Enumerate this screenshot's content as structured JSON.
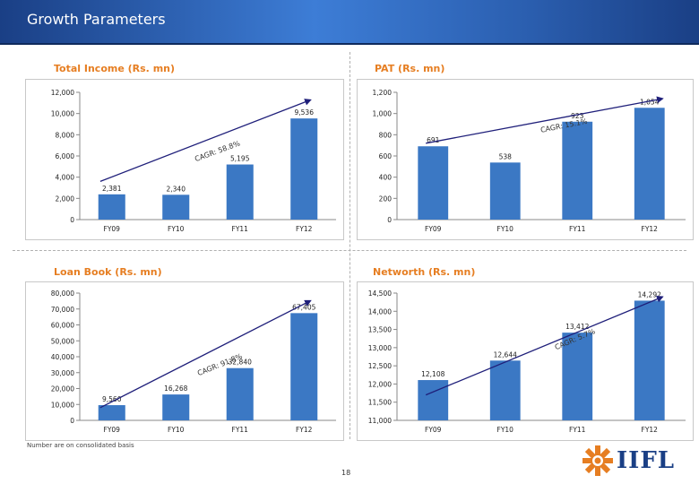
{
  "header": {
    "title": "Growth Parameters"
  },
  "footnote": "Number are on consolidated basis",
  "page_number": "18",
  "logo": {
    "text": "IIFL",
    "colors": {
      "star": "#e67e22",
      "text": "#1a3f85"
    }
  },
  "colors": {
    "bar": "#3b78c4",
    "label": "#e67e22",
    "arrow": "#1f1f7a"
  },
  "chart_data": [
    {
      "type": "bar",
      "title": "Total Income (Rs. mn)",
      "categories": [
        "FY09",
        "FY10",
        "FY11",
        "FY12"
      ],
      "values": [
        2381,
        2340,
        5195,
        9536
      ],
      "value_labels": [
        "2,381",
        "2,340",
        "5,195",
        "9,536"
      ],
      "ylim": [
        0,
        12000
      ],
      "yticks": [
        0,
        2000,
        4000,
        6000,
        8000,
        10000,
        12000
      ],
      "ytick_labels": [
        "0",
        "2,000",
        "4,000",
        "6,000",
        "8,000",
        "10,000",
        "12,000"
      ],
      "annotation": "CAGR: 58.8%"
    },
    {
      "type": "bar",
      "title": "PAT (Rs. mn)",
      "categories": [
        "FY09",
        "FY10",
        "FY11",
        "FY12"
      ],
      "values": [
        691,
        538,
        923,
        1054
      ],
      "value_labels": [
        "691",
        "538",
        "923",
        "1,054"
      ],
      "ylim": [
        0,
        1200
      ],
      "yticks": [
        0,
        200,
        400,
        600,
        800,
        1000,
        1200
      ],
      "ytick_labels": [
        "0",
        "200",
        "400",
        "600",
        "800",
        "1,000",
        "1,200"
      ],
      "annotation": "CAGR: 15.1%"
    },
    {
      "type": "bar",
      "title": "Loan Book (Rs. mn)",
      "categories": [
        "FY09",
        "FY10",
        "FY11",
        "FY12"
      ],
      "values": [
        9560,
        16268,
        32840,
        67405
      ],
      "value_labels": [
        "9,560",
        "16,268",
        "32,840",
        "67,405"
      ],
      "ylim": [
        0,
        80000
      ],
      "yticks": [
        0,
        10000,
        20000,
        30000,
        40000,
        50000,
        60000,
        70000,
        80000
      ],
      "ytick_labels": [
        "0",
        "10,000",
        "20,000",
        "30,000",
        "40,000",
        "50,000",
        "60,000",
        "70,000",
        "80,000"
      ],
      "annotation": "CAGR: 91.8%"
    },
    {
      "type": "bar",
      "title": "Networth (Rs. mn)",
      "categories": [
        "FY09",
        "FY10",
        "FY11",
        "FY12"
      ],
      "values": [
        12108,
        12644,
        13412,
        14292
      ],
      "value_labels": [
        "12,108",
        "12,644",
        "13,412",
        "14,292"
      ],
      "ylim": [
        11000,
        14500
      ],
      "yticks": [
        11000,
        11500,
        12000,
        12500,
        13000,
        13500,
        14000,
        14500
      ],
      "ytick_labels": [
        "11,000",
        "11,500",
        "12,000",
        "12,500",
        "13,000",
        "13,500",
        "14,000",
        "14,500"
      ],
      "annotation": "CAGR: 5.7%"
    }
  ]
}
